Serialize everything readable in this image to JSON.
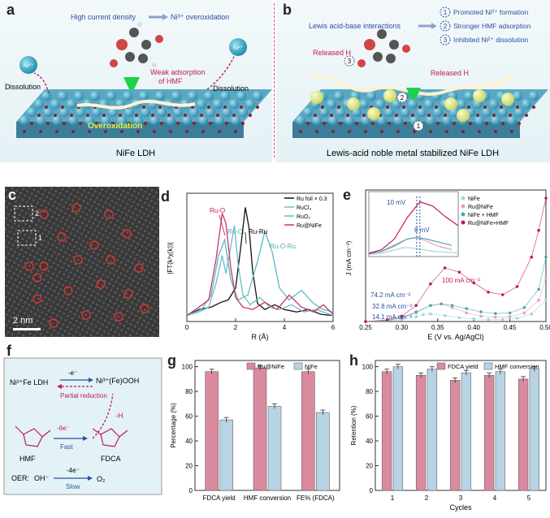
{
  "panel_a": {
    "label": "a",
    "caption": "NiFe LDH",
    "arrow_left": "High current density",
    "arrow_right": "Ni³⁺ overoxidation",
    "dissolution_left": "Dissolution",
    "dissolution_right": "Dissolution",
    "weak_adsorption_1": "Weak adsorption",
    "weak_adsorption_2": "of HMF",
    "overoxidation": "Overoxidation",
    "ion_left": "Ni²⁺",
    "ion_right": "Ni²⁺"
  },
  "panel_b": {
    "label": "b",
    "caption": "Lewis-acid noble metal stabilized NiFe LDH",
    "interaction": "Lewis acid-base interactions",
    "item1": "Promoted Ni³⁺ formation",
    "item2": "Stronger HMF adsorption",
    "item3": "Inhibited Ni²⁺ dissolution",
    "num1": "1",
    "num2": "2",
    "num3": "3",
    "released_left": "Released H",
    "released_right": "Released H"
  },
  "panel_c": {
    "label": "c",
    "scale_bar": "2 nm",
    "box1": "1",
    "box2": "2"
  },
  "panel_d": {
    "label": "d",
    "ylabel": "|FT(k³χ(k))|",
    "xlabel": "R (Å)",
    "xticks": [
      "0",
      "2",
      "4",
      "6"
    ],
    "ann_ruo": "Ru-O",
    "ann_rucl": "Ru-Cl",
    "ann_ruru": "Ru-Ru",
    "ann_ruoru": "Ru-O-Ru",
    "chart_data": {
      "type": "line",
      "xlim": [
        0,
        6
      ],
      "series": [
        {
          "name": "Ru foil × 0.3",
          "color": "#111111",
          "x": [
            0,
            0.5,
            1,
            1.4,
            1.7,
            2.0,
            2.2,
            2.4,
            2.55,
            2.7,
            2.9,
            3.2,
            3.6,
            4.0,
            4.5,
            5,
            5.5,
            6
          ],
          "y": [
            0.05,
            0.1,
            0.12,
            0.16,
            0.18,
            0.28,
            0.6,
            0.95,
            0.78,
            0.42,
            0.15,
            0.1,
            0.14,
            0.1,
            0.08,
            0.1,
            0.06,
            0.05
          ]
        },
        {
          "name": "RuCl₃",
          "color": "#6dbdc8",
          "x": [
            0,
            0.5,
            0.9,
            1.2,
            1.45,
            1.6,
            1.8,
            1.95,
            2.1,
            2.3,
            2.6,
            3.0,
            3.4,
            3.8,
            4.3,
            4.8,
            5.3,
            6
          ],
          "y": [
            0.05,
            0.08,
            0.12,
            0.32,
            0.55,
            0.4,
            0.62,
            0.8,
            0.48,
            0.22,
            0.14,
            0.2,
            0.12,
            0.1,
            0.14,
            0.08,
            0.1,
            0.05
          ]
        },
        {
          "name": "RuO₂",
          "color": "#5ab8c9",
          "x": [
            0,
            0.6,
            1.0,
            1.3,
            1.55,
            1.8,
            2.1,
            2.5,
            2.9,
            3.2,
            3.5,
            3.8,
            4.2,
            4.7,
            5.2,
            5.6,
            6
          ],
          "y": [
            0.05,
            0.1,
            0.22,
            0.55,
            0.68,
            0.35,
            0.18,
            0.22,
            0.5,
            0.75,
            0.58,
            0.28,
            0.18,
            0.26,
            0.15,
            0.1,
            0.08
          ]
        },
        {
          "name": "Ru@NiFe",
          "color": "#cc3366",
          "x": [
            0,
            0.5,
            0.9,
            1.2,
            1.45,
            1.6,
            1.8,
            2.0,
            2.3,
            2.7,
            3.2,
            3.7,
            4.2,
            4.7,
            5.2,
            5.6,
            6
          ],
          "y": [
            0.05,
            0.12,
            0.18,
            0.52,
            0.9,
            0.82,
            0.45,
            0.2,
            0.12,
            0.1,
            0.16,
            0.1,
            0.22,
            0.12,
            0.08,
            0.14,
            0.06
          ]
        }
      ]
    }
  },
  "panel_e": {
    "label": "e",
    "ylabel": "J (mA cm⁻²)",
    "xlabel": "E (V vs. Ag/AgCl)",
    "xticks": [
      "0.25",
      "0.30",
      "0.35",
      "0.40",
      "0.45",
      "0.50"
    ],
    "ann_100": "100 mA cm⁻²",
    "ann_742": "74.2 mA cm⁻²",
    "ann_328": "32.8 mA cm⁻²",
    "ann_141": "14.1 mA cm⁻²",
    "inset_10mv": "10 mV",
    "inset_8mv": "8 mV",
    "chart_data": {
      "type": "line",
      "xlim": [
        0.25,
        0.5
      ],
      "series": [
        {
          "name": "NiFe",
          "color": "#9fd6de",
          "x": [
            0.25,
            0.28,
            0.3,
            0.32,
            0.33,
            0.34,
            0.36,
            0.38,
            0.4,
            0.42,
            0.44,
            0.46,
            0.48,
            0.5
          ],
          "y": [
            0,
            1,
            3,
            9,
            13,
            14.1,
            11,
            7,
            5,
            4,
            4,
            6,
            14,
            40
          ]
        },
        {
          "name": "Ru@NiFe",
          "color": "#e8a0b8",
          "x": [
            0.25,
            0.28,
            0.3,
            0.32,
            0.34,
            0.355,
            0.37,
            0.39,
            0.41,
            0.43,
            0.45,
            0.47,
            0.49,
            0.5
          ],
          "y": [
            0,
            2,
            6,
            16,
            30,
            32.8,
            26,
            16,
            10,
            8,
            9,
            16,
            40,
            80
          ]
        },
        {
          "name": "NiFe + HMF",
          "color": "#4aa7b3",
          "x": [
            0.25,
            0.28,
            0.3,
            0.32,
            0.34,
            0.355,
            0.37,
            0.39,
            0.41,
            0.43,
            0.45,
            0.47,
            0.49,
            0.5
          ],
          "y": [
            0,
            2,
            7,
            18,
            30,
            32.8,
            30,
            24,
            18,
            15,
            16,
            26,
            60,
            120
          ]
        },
        {
          "name": "Ru@NiFe+HMF",
          "color": "#c2185b",
          "x": [
            0.25,
            0.28,
            0.3,
            0.32,
            0.34,
            0.36,
            0.38,
            0.4,
            0.42,
            0.44,
            0.46,
            0.48,
            0.49,
            0.5
          ],
          "y": [
            0,
            3,
            10,
            30,
            70,
            100,
            92,
            72,
            55,
            50,
            65,
            120,
            170,
            230
          ]
        }
      ]
    }
  },
  "panel_f": {
    "label": "f",
    "ldh": "Ni²⁺Fe LDH",
    "minus_e": "-e⁻",
    "product": "Ni³⁺(Fe)OOH",
    "partial_reduction": "Partial reduction",
    "minus_h": "-H",
    "minus_6e": "-6e⁻",
    "fast": "Fast",
    "hmf": "HMF",
    "fdca": "FDCA",
    "oer": "OER:",
    "oh": "OH⁻",
    "minus_4e": "-4e⁻",
    "slow": "Slow",
    "o2": "O₂"
  },
  "panel_g": {
    "label": "g",
    "ylabel": "Percentage (%)",
    "yticks": [
      "0",
      "20",
      "40",
      "60",
      "80",
      "100"
    ],
    "chart_data": {
      "type": "bar",
      "categories": [
        "FDCA yield",
        "HMF conversion",
        "FE% (FDCA)"
      ],
      "ylim": [
        0,
        105
      ],
      "series": [
        {
          "name": "Ru@NiFe",
          "color": "#d98a9f",
          "values": [
            96,
            99,
            96
          ]
        },
        {
          "name": "NiFe",
          "color": "#b9d3e6",
          "values": [
            57,
            68,
            63
          ]
        }
      ]
    }
  },
  "panel_h": {
    "label": "h",
    "ylabel": "Retention (%)",
    "xlabel": "Cycles",
    "yticks": [
      "0",
      "20",
      "40",
      "60",
      "80",
      "100"
    ],
    "chart_data": {
      "type": "bar",
      "categories": [
        "1",
        "2",
        "3",
        "4",
        "5"
      ],
      "ylim": [
        0,
        105
      ],
      "series": [
        {
          "name": "FDCA yield",
          "color": "#d98a9f",
          "values": [
            96,
            93,
            89,
            93,
            90
          ]
        },
        {
          "name": "HMF conversion",
          "color": "#b9d3e6",
          "values": [
            100,
            98,
            95,
            96,
            98
          ]
        }
      ]
    }
  }
}
